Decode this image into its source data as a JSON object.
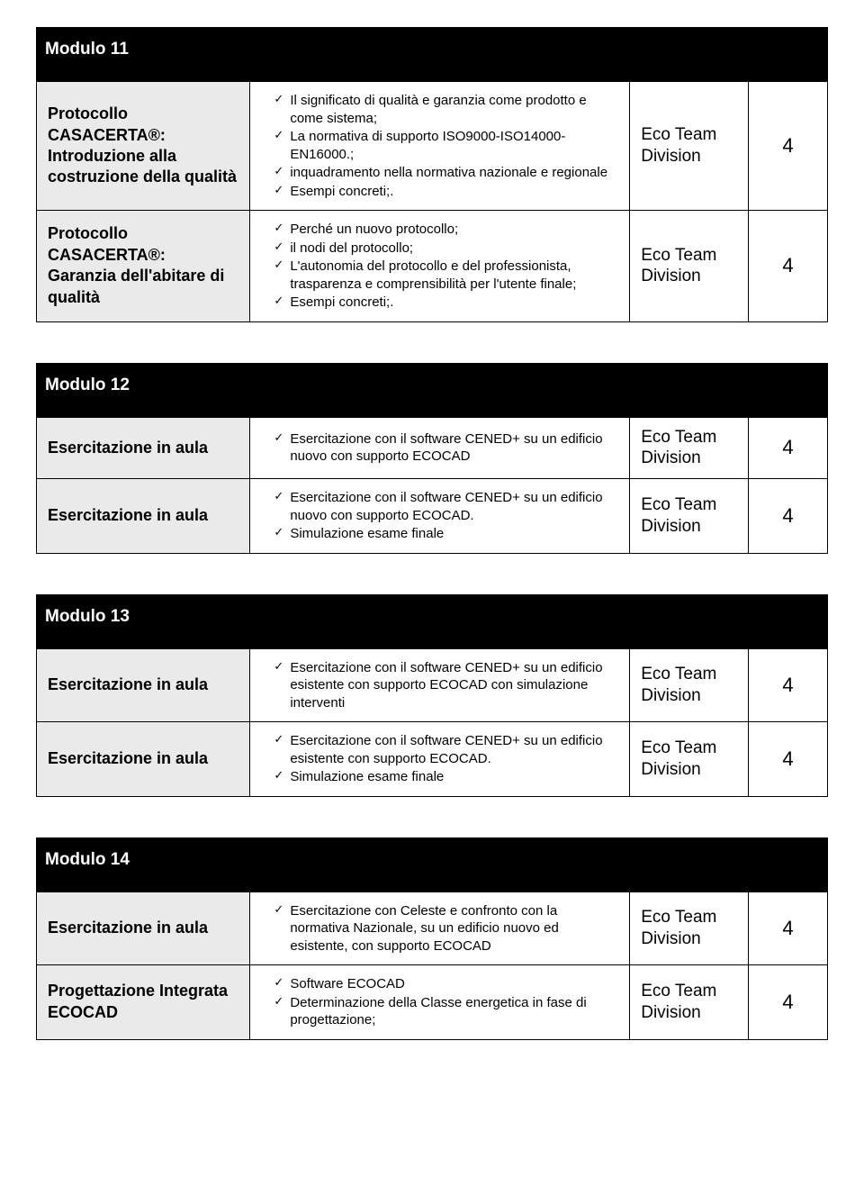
{
  "team": "Eco Team",
  "division": "Division",
  "modules": [
    {
      "title": "Modulo 11",
      "rows": [
        {
          "left": "Protocollo CASACERTA®:\nIntroduzione alla\ncostruzione della qualità",
          "items": [
            "Il significato di qualità e garanzia come prodotto e come sistema;",
            "La normativa di supporto ISO9000-ISO14000-EN16000.;",
            "inquadramento nella normativa nazionale e regionale",
            "Esempi concreti;."
          ],
          "hours": "4"
        },
        {
          "left": "Protocollo CASACERTA®:\nGaranzia dell'abitare di\nqualità",
          "items": [
            "Perché un nuovo protocollo;",
            "il nodi del protocollo;",
            "L'autonomia del protocollo e del professionista, trasparenza e comprensibilità per l'utente finale;",
            "Esempi concreti;."
          ],
          "hours": "4"
        }
      ]
    },
    {
      "title": "Modulo 12",
      "rows": [
        {
          "left": "Esercitazione in aula",
          "items": [
            "Esercitazione con il software CENED+ su un edificio nuovo con supporto ECOCAD"
          ],
          "hours": "4"
        },
        {
          "left": "Esercitazione in aula",
          "items": [
            "Esercitazione con il software CENED+ su un edificio nuovo con supporto ECOCAD.",
            "Simulazione esame finale"
          ],
          "hours": "4"
        }
      ]
    },
    {
      "title": "Modulo 13",
      "rows": [
        {
          "left": "Esercitazione in aula",
          "items": [
            "Esercitazione con il software CENED+ su un edificio esistente con supporto ECOCAD con simulazione interventi"
          ],
          "hours": "4"
        },
        {
          "left": "Esercitazione in aula",
          "items": [
            "Esercitazione con il software CENED+ su un edificio esistente con supporto ECOCAD.",
            "Simulazione esame finale"
          ],
          "hours": "4"
        }
      ]
    },
    {
      "title": "Modulo 14",
      "rows": [
        {
          "left": "Esercitazione in aula",
          "items": [
            "Esercitazione con Celeste e confronto con la normativa Nazionale, su un edificio nuovo ed esistente, con supporto ECOCAD"
          ],
          "hours": "4"
        },
        {
          "left": "Progettazione Integrata\nECOCAD",
          "items": [
            "Software ECOCAD",
            "Determinazione della Classe energetica in fase di progettazione;"
          ],
          "hours": "4"
        }
      ]
    }
  ]
}
